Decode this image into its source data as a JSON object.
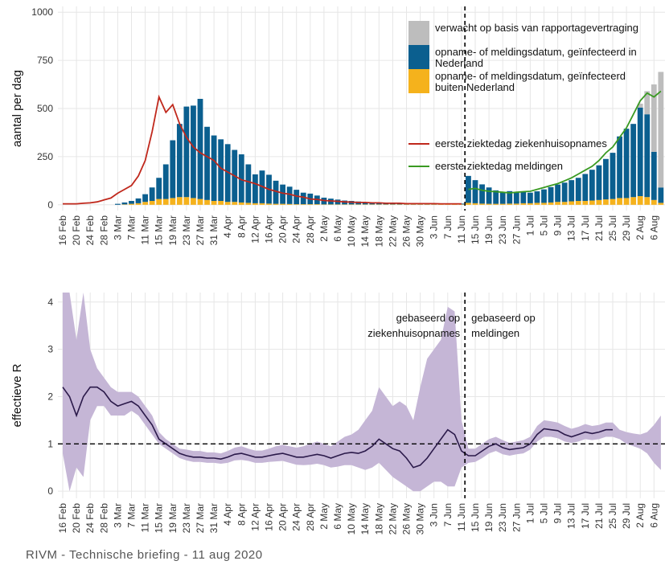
{
  "chart_data": [
    {
      "type": "bar",
      "ylabel": "aantal per dag",
      "ylim": [
        -30,
        1030
      ],
      "yticks": [
        0,
        250,
        500,
        750,
        1000
      ],
      "grid": true,
      "categories": [
        "16 Feb",
        null,
        "20 Feb",
        null,
        "24 Feb",
        null,
        "28 Feb",
        null,
        "3 Mar",
        null,
        "7 Mar",
        null,
        "11 Mar",
        null,
        "15 Mar",
        null,
        "19 Mar",
        null,
        "23 Mar",
        null,
        "27 Mar",
        null,
        "31 Mar",
        null,
        "4 Apr",
        null,
        "8 Apr",
        null,
        "12 Apr",
        null,
        "16 Apr",
        null,
        "20 Apr",
        null,
        "24 Apr",
        null,
        "28 Apr",
        null,
        "2 May",
        null,
        "6 May",
        null,
        "10 May",
        null,
        "14 May",
        null,
        "18 May",
        null,
        "22 May",
        null,
        "26 May",
        null,
        "30 May",
        null,
        "3 Jun",
        null,
        "7 Jun",
        null,
        "11 Jun",
        null,
        "15 Jun",
        null,
        "19 Jun",
        null,
        "23 Jun",
        null,
        "27 Jun",
        null,
        "1 Jul",
        null,
        "5 Jul",
        null,
        "9 Jul",
        null,
        "13 Jul",
        null,
        "17 Jul",
        null,
        "21 Jul",
        null,
        "25 Jul",
        null,
        "29 Jul",
        null,
        "2 Aug",
        null,
        "6 Aug",
        null
      ],
      "series": [
        {
          "name": "verwacht op basis van rapportagevertraging",
          "type": "bar",
          "color": "#bdbdbd",
          "values": [
            0,
            0,
            0,
            0,
            0,
            0,
            0,
            0,
            0,
            0,
            0,
            0,
            0,
            0,
            0,
            0,
            0,
            0,
            0,
            0,
            0,
            0,
            0,
            0,
            0,
            0,
            0,
            0,
            0,
            0,
            0,
            0,
            0,
            0,
            0,
            0,
            0,
            0,
            0,
            0,
            0,
            0,
            0,
            0,
            0,
            0,
            0,
            0,
            0,
            0,
            0,
            0,
            0,
            0,
            0,
            0,
            0,
            0,
            0,
            0,
            0,
            0,
            0,
            0,
            0,
            0,
            0,
            0,
            0,
            0,
            0,
            0,
            0,
            0,
            0,
            0,
            0,
            0,
            0,
            0,
            0,
            0,
            0,
            0,
            20,
            120,
            350,
            600
          ]
        },
        {
          "name": "opname- of meldingsdatum, geïnfecteerd in Nederland",
          "type": "bar",
          "color": "#0b5f8f",
          "values": [
            0,
            0,
            0,
            0,
            0,
            0,
            0,
            0,
            5,
            10,
            15,
            25,
            40,
            70,
            110,
            180,
            300,
            380,
            470,
            480,
            520,
            380,
            340,
            320,
            300,
            270,
            250,
            200,
            150,
            170,
            150,
            120,
            100,
            90,
            75,
            60,
            55,
            45,
            35,
            30,
            25,
            20,
            18,
            15,
            12,
            10,
            10,
            8,
            8,
            6,
            6,
            5,
            5,
            5,
            5,
            4,
            4,
            4,
            4,
            140,
            120,
            100,
            85,
            70,
            60,
            65,
            60,
            60,
            55,
            60,
            70,
            80,
            90,
            100,
            110,
            120,
            140,
            160,
            180,
            210,
            240,
            320,
            360,
            380,
            460,
            430,
            250,
            80
          ]
        },
        {
          "name": "opname- of meldingsdatum, geïnfecteerd buiten Nederland",
          "type": "bar",
          "color": "#f5b21c",
          "values": [
            0,
            0,
            0,
            0,
            0,
            0,
            0,
            0,
            0,
            2,
            5,
            8,
            15,
            20,
            30,
            30,
            35,
            40,
            40,
            35,
            30,
            25,
            20,
            20,
            15,
            15,
            12,
            10,
            8,
            8,
            6,
            5,
            5,
            4,
            3,
            3,
            3,
            3,
            2,
            2,
            2,
            2,
            2,
            2,
            2,
            2,
            2,
            2,
            2,
            2,
            2,
            2,
            2,
            2,
            2,
            2,
            2,
            2,
            2,
            10,
            8,
            6,
            5,
            5,
            5,
            6,
            6,
            8,
            8,
            10,
            10,
            12,
            15,
            15,
            18,
            20,
            20,
            22,
            25,
            28,
            30,
            35,
            35,
            40,
            45,
            40,
            25,
            10
          ]
        },
        {
          "name": "eerste ziektedag ziekenhuisopnames",
          "type": "line",
          "color": "#c0281c",
          "values": [
            5,
            5,
            5,
            8,
            10,
            15,
            25,
            35,
            60,
            80,
            100,
            150,
            230,
            380,
            560,
            480,
            520,
            420,
            350,
            300,
            270,
            250,
            230,
            190,
            170,
            150,
            130,
            120,
            110,
            95,
            80,
            70,
            60,
            55,
            45,
            40,
            30,
            28,
            22,
            20,
            18,
            15,
            14,
            12,
            12,
            10,
            10,
            8,
            8,
            8,
            6,
            6,
            6,
            6,
            6,
            5,
            5,
            5,
            5,
            null,
            null,
            null,
            null,
            null,
            null,
            null,
            null,
            null,
            null,
            null,
            null,
            null,
            null,
            null,
            null,
            null,
            null,
            null,
            null,
            null,
            null,
            null,
            null,
            null,
            null,
            null,
            null,
            null
          ]
        },
        {
          "name": "eerste ziektedag meldingen",
          "type": "line",
          "color": "#3a9a22",
          "values": [
            null,
            null,
            null,
            null,
            null,
            null,
            null,
            null,
            null,
            null,
            null,
            null,
            null,
            null,
            null,
            null,
            null,
            null,
            null,
            null,
            null,
            null,
            null,
            null,
            null,
            null,
            null,
            null,
            null,
            null,
            null,
            null,
            null,
            null,
            null,
            null,
            null,
            null,
            null,
            null,
            null,
            null,
            null,
            null,
            null,
            null,
            null,
            null,
            null,
            null,
            null,
            null,
            null,
            null,
            null,
            null,
            null,
            null,
            null,
            80,
            85,
            75,
            70,
            68,
            65,
            62,
            65,
            68,
            70,
            80,
            90,
            100,
            110,
            125,
            140,
            160,
            180,
            200,
            230,
            270,
            300,
            350,
            400,
            470,
            540,
            580,
            560,
            590
          ]
        }
      ]
    },
    {
      "type": "line",
      "ylabel": "effectieve R",
      "ylim": [
        -0.15,
        4.2
      ],
      "yticks": [
        0,
        1,
        2,
        3,
        4
      ],
      "grid": true,
      "hline": 1,
      "color": "#2b1a4a",
      "band_color": "#c5b6d6",
      "annotations": [
        "gebaseerd op ziekenhuisopnames",
        "gebaseerd op meldingen"
      ],
      "categories": [
        "16 Feb",
        null,
        "20 Feb",
        null,
        "24 Feb",
        null,
        "28 Feb",
        null,
        "3 Mar",
        null,
        "7 Mar",
        null,
        "11 Mar",
        null,
        "15 Mar",
        null,
        "19 Mar",
        null,
        "23 Mar",
        null,
        "27 Mar",
        null,
        "31 Mar",
        null,
        "4 Apr",
        null,
        "8 Apr",
        null,
        "12 Apr",
        null,
        "16 Apr",
        null,
        "20 Apr",
        null,
        "24 Apr",
        null,
        "28 Apr",
        null,
        "2 May",
        null,
        "6 May",
        null,
        "10 May",
        null,
        "14 May",
        null,
        "18 May",
        null,
        "22 May",
        null,
        "26 May",
        null,
        "30 May",
        null,
        "3 Jun",
        null,
        "7 Jun",
        null,
        "11 Jun",
        null,
        "15 Jun",
        null,
        "19 Jun",
        null,
        "23 Jun",
        null,
        "27 Jun",
        null,
        "1 Jul",
        null,
        "5 Jul",
        null,
        "9 Jul",
        null,
        "13 Jul",
        null,
        "17 Jul",
        null,
        "21 Jul",
        null,
        "25 Jul",
        null,
        "29 Jul",
        null,
        "2 Aug",
        null,
        "6 Aug",
        null
      ],
      "values": [
        2.2,
        2.0,
        1.6,
        2.0,
        2.2,
        2.2,
        2.1,
        1.9,
        1.8,
        1.85,
        1.9,
        1.8,
        1.6,
        1.4,
        1.1,
        1.0,
        0.9,
        0.8,
        0.75,
        0.72,
        0.72,
        0.7,
        0.7,
        0.68,
        0.72,
        0.78,
        0.8,
        0.76,
        0.72,
        0.72,
        0.75,
        0.78,
        0.8,
        0.76,
        0.72,
        0.72,
        0.75,
        0.78,
        0.75,
        0.7,
        0.75,
        0.8,
        0.82,
        0.8,
        0.85,
        0.95,
        1.1,
        1.0,
        0.9,
        0.85,
        0.7,
        0.5,
        0.55,
        0.7,
        0.9,
        1.1,
        1.3,
        1.2,
        0.85,
        0.75,
        0.75,
        0.85,
        0.95,
        1.0,
        0.92,
        0.88,
        0.9,
        0.92,
        1.0,
        1.2,
        1.32,
        1.3,
        1.28,
        1.2,
        1.15,
        1.2,
        1.25,
        1.22,
        1.25,
        1.3,
        1.3,
        null,
        null,
        null,
        null,
        null,
        null,
        null
      ],
      "lower": [
        0.8,
        0,
        0.5,
        0.3,
        1.5,
        1.8,
        1.8,
        1.6,
        1.6,
        1.6,
        1.7,
        1.6,
        1.4,
        1.2,
        1.0,
        0.9,
        0.8,
        0.7,
        0.65,
        0.62,
        0.62,
        0.6,
        0.6,
        0.58,
        0.6,
        0.65,
        0.66,
        0.64,
        0.6,
        0.6,
        0.62,
        0.63,
        0.64,
        0.6,
        0.56,
        0.55,
        0.56,
        0.58,
        0.55,
        0.5,
        0.52,
        0.55,
        0.55,
        0.5,
        0.45,
        0.5,
        0.6,
        0.45,
        0.3,
        0.2,
        0.1,
        0,
        0,
        0.1,
        0.2,
        0.2,
        0.1,
        0.1,
        0.5,
        0.6,
        0.62,
        0.7,
        0.8,
        0.85,
        0.78,
        0.75,
        0.78,
        0.8,
        0.88,
        1.05,
        1.15,
        1.15,
        1.12,
        1.05,
        1.02,
        1.05,
        1.1,
        1.08,
        1.1,
        1.15,
        1.15,
        1.1,
        1.0,
        0.95,
        0.9,
        0.8,
        0.6,
        0.45
      ],
      "upper": [
        4.2,
        4.2,
        3.2,
        4.2,
        3.0,
        2.6,
        2.4,
        2.2,
        2.1,
        2.1,
        2.1,
        2.0,
        1.8,
        1.6,
        1.25,
        1.1,
        1.0,
        0.9,
        0.88,
        0.85,
        0.85,
        0.82,
        0.82,
        0.8,
        0.85,
        0.92,
        0.95,
        0.9,
        0.86,
        0.86,
        0.9,
        0.95,
        0.98,
        0.95,
        0.92,
        0.95,
        1.0,
        1.05,
        1.0,
        0.95,
        1.05,
        1.15,
        1.2,
        1.3,
        1.5,
        1.7,
        2.2,
        2.0,
        1.8,
        1.9,
        1.8,
        1.5,
        2.2,
        2.8,
        3.0,
        3.2,
        3.9,
        3.8,
        1.5,
        0.9,
        0.9,
        1.0,
        1.1,
        1.15,
        1.08,
        1.02,
        1.05,
        1.08,
        1.15,
        1.38,
        1.5,
        1.48,
        1.45,
        1.38,
        1.32,
        1.36,
        1.42,
        1.38,
        1.4,
        1.45,
        1.45,
        1.3,
        1.25,
        1.22,
        1.2,
        1.25,
        1.4,
        1.6
      ]
    }
  ],
  "footer": "RIVM - Technische briefing - 11 aug 2020"
}
